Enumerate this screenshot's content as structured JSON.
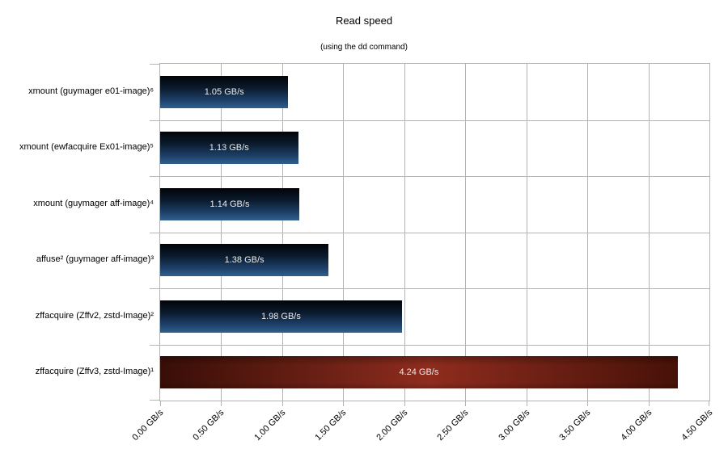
{
  "chart_data": {
    "type": "bar",
    "orientation": "horizontal",
    "title": "Read speed",
    "subtitle": "(using the dd command)",
    "categories": [
      "xmount (guymager e01-image)⁶",
      "xmount (ewfacquire Ex01-image)⁵",
      "xmount (guymager aff-image)⁴",
      "affuse² (guymager aff-image)³",
      "zffacquire (Zffv2, zstd-Image)²",
      "zffacquire (Zffv3, zstd-Image)¹"
    ],
    "values": [
      1.05,
      1.13,
      1.14,
      1.38,
      1.98,
      4.24
    ],
    "value_labels": [
      "1.05 GB/s",
      "1.13 GB/s",
      "1.14 GB/s",
      "1.38 GB/s",
      "1.98 GB/s",
      "4.24 GB/s"
    ],
    "bar_styles": [
      "blue",
      "blue",
      "blue",
      "blue",
      "blue",
      "red"
    ],
    "x_ticks": [
      0.0,
      0.5,
      1.0,
      1.5,
      2.0,
      2.5,
      3.0,
      3.5,
      4.0,
      4.5
    ],
    "x_tick_labels": [
      "0.00 GB/s",
      "0.50 GB/s",
      "1.00 GB/s",
      "1.50 GB/s",
      "2.00 GB/s",
      "2.50 GB/s",
      "3.00 GB/s",
      "3.50 GB/s",
      "4.00 GB/s",
      "4.50 GB/s"
    ],
    "xlim": [
      0,
      4.5
    ],
    "xlabel": "",
    "ylabel": "",
    "legend": "none",
    "grid": "on",
    "colors": {
      "gridline": "#b3b3b3",
      "text": "#000000",
      "value_label_text": "#eeebe8",
      "blue_bar_top": "#010409",
      "blue_bar_upper_mid": "#0b1b2e",
      "blue_bar_lower_mid": "#1d4068",
      "blue_bar_bottom": "#30608f",
      "red_bar_edge_left": "#380e07",
      "red_bar_mid": "#8e2c1e",
      "red_bar_edge_right": "#471108"
    }
  }
}
